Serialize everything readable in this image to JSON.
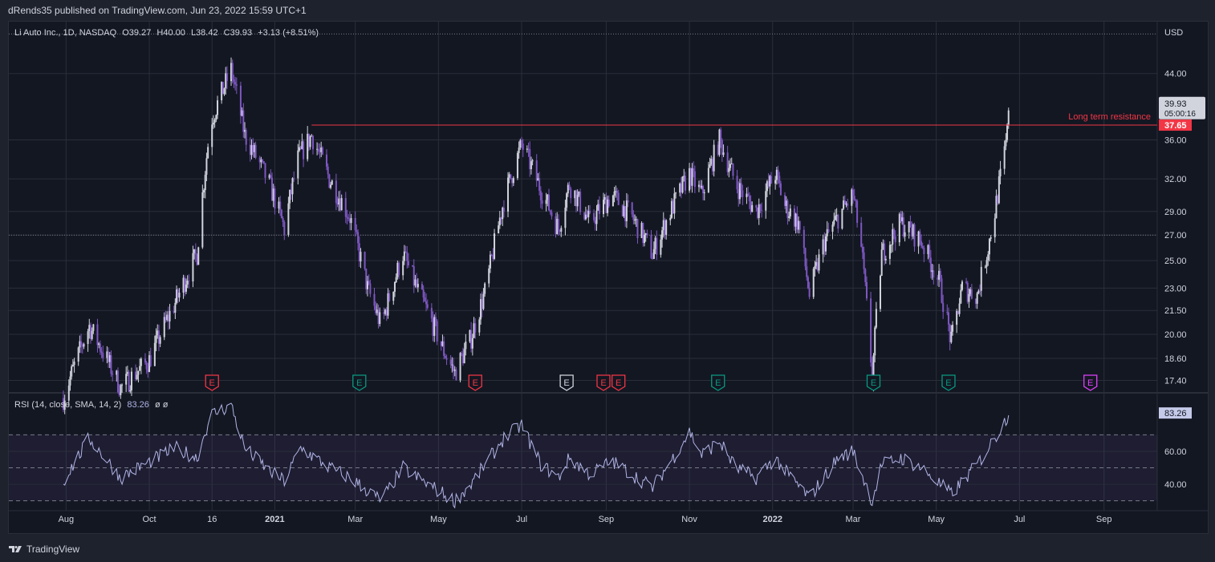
{
  "header": {
    "published": "dRends35 published on TradingView.com, Jun 23, 2022 15:59 UTC+1"
  },
  "footer": {
    "brand": "TradingView"
  },
  "symbol_legend": {
    "name": "Li Auto Inc., 1D, NASDAQ",
    "open": "O39.27",
    "high": "H40.00",
    "low": "L38.42",
    "close": "C39.93",
    "change": "+3.13 (+8.51%)"
  },
  "rsi_legend": {
    "text": "RSI (14, close, SMA, 14, 2)",
    "value": "83.26",
    "extra": "ø  ø"
  },
  "colors": {
    "background": "#131722",
    "grid": "#2a2e39",
    "up": "#d1d4dc",
    "down": "#7e57c2",
    "resistance": "#f23645",
    "rsi_line": "#b2b5e6",
    "earnings_red": "#f23645",
    "earnings_green": "#089981",
    "earnings_grey": "#d1d4dc",
    "earnings_magenta": "#e040fb"
  },
  "chart_data": [
    {
      "type": "candlestick",
      "title": "Li Auto Inc., 1D, NASDAQ",
      "currency": "USD",
      "scale": "log",
      "ylim": [
        16.8,
        50
      ],
      "y_ticks": [
        44.0,
        36.0,
        32.0,
        29.0,
        27.0,
        25.0,
        23.0,
        21.5,
        20.0,
        18.6,
        17.4
      ],
      "x_ticks": [
        "Aug",
        "Oct",
        "16",
        "2021",
        "Mar",
        "May",
        "Jul",
        "Sep",
        "Nov",
        "2022",
        "Mar",
        "May",
        "Jul",
        "Sep"
      ],
      "anchors": [
        {
          "date": "2020-07-30",
          "close": 16.5
        },
        {
          "date": "2020-08-18",
          "close": 20.5
        },
        {
          "date": "2020-09-10",
          "close": 17.0
        },
        {
          "date": "2020-10-01",
          "close": 18.5
        },
        {
          "date": "2020-10-20",
          "close": 22.0
        },
        {
          "date": "2020-11-05",
          "close": 25.5
        },
        {
          "date": "2020-11-15",
          "close": 38.0
        },
        {
          "date": "2020-11-30",
          "close": 44.5
        },
        {
          "date": "2020-12-10",
          "close": 36.5
        },
        {
          "date": "2020-12-28",
          "close": 31.5
        },
        {
          "date": "2021-01-08",
          "close": 27.5
        },
        {
          "date": "2021-01-18",
          "close": 34.0
        },
        {
          "date": "2021-01-28",
          "close": 36.5
        },
        {
          "date": "2021-02-10",
          "close": 32.0
        },
        {
          "date": "2021-02-25",
          "close": 28.5
        },
        {
          "date": "2021-03-10",
          "close": 23.0
        },
        {
          "date": "2021-03-20",
          "close": 20.5
        },
        {
          "date": "2021-04-05",
          "close": 25.5
        },
        {
          "date": "2021-04-15",
          "close": 23.0
        },
        {
          "date": "2021-05-05",
          "close": 19.0
        },
        {
          "date": "2021-05-13",
          "close": 17.8
        },
        {
          "date": "2021-05-25",
          "close": 19.8
        },
        {
          "date": "2021-06-05",
          "close": 23.0
        },
        {
          "date": "2021-06-18",
          "close": 30.0
        },
        {
          "date": "2021-07-01",
          "close": 35.5
        },
        {
          "date": "2021-07-15",
          "close": 31.0
        },
        {
          "date": "2021-07-28",
          "close": 27.5
        },
        {
          "date": "2021-08-05",
          "close": 31.5
        },
        {
          "date": "2021-08-20",
          "close": 28.0
        },
        {
          "date": "2021-09-05",
          "close": 30.5
        },
        {
          "date": "2021-09-20",
          "close": 28.5
        },
        {
          "date": "2021-10-05",
          "close": 25.5
        },
        {
          "date": "2021-10-20",
          "close": 29.5
        },
        {
          "date": "2021-11-01",
          "close": 32.5
        },
        {
          "date": "2021-11-10",
          "close": 30.5
        },
        {
          "date": "2021-11-23",
          "close": 36.0
        },
        {
          "date": "2021-12-05",
          "close": 31.5
        },
        {
          "date": "2021-12-20",
          "close": 29.0
        },
        {
          "date": "2022-01-03",
          "close": 32.5
        },
        {
          "date": "2022-01-10",
          "close": 29.5
        },
        {
          "date": "2022-01-20",
          "close": 28.0
        },
        {
          "date": "2022-01-28",
          "close": 22.5
        },
        {
          "date": "2022-02-08",
          "close": 26.5
        },
        {
          "date": "2022-02-18",
          "close": 28.5
        },
        {
          "date": "2022-03-01",
          "close": 30.5
        },
        {
          "date": "2022-03-07",
          "close": 26.0
        },
        {
          "date": "2022-03-15",
          "close": 17.5
        },
        {
          "date": "2022-03-22",
          "close": 25.5
        },
        {
          "date": "2022-04-05",
          "close": 28.0
        },
        {
          "date": "2022-04-20",
          "close": 26.5
        },
        {
          "date": "2022-05-03",
          "close": 23.5
        },
        {
          "date": "2022-05-12",
          "close": 19.5
        },
        {
          "date": "2022-05-20",
          "close": 23.0
        },
        {
          "date": "2022-05-31",
          "close": 22.5
        },
        {
          "date": "2022-06-08",
          "close": 26.0
        },
        {
          "date": "2022-06-13",
          "close": 29.0
        },
        {
          "date": "2022-06-20",
          "close": 34.5
        },
        {
          "date": "2022-06-22",
          "close": 36.8
        },
        {
          "date": "2022-06-23",
          "close": 39.93
        }
      ],
      "price_label": "39.93",
      "countdown_label": "05:00:16",
      "resistance": {
        "name": "Long term resistance",
        "value": 37.65,
        "label": "37.65",
        "start_date": "2021-01-28"
      },
      "dotted_levels": [
        27.0,
        49.6
      ],
      "earnings": [
        {
          "date": "2020-11-16",
          "kind": "red",
          "label": "E"
        },
        {
          "date": "2021-03-04",
          "kind": "green",
          "label": "E"
        },
        {
          "date": "2021-05-28",
          "kind": "red",
          "label": "E"
        },
        {
          "date": "2021-08-03",
          "kind": "grey",
          "label": "E"
        },
        {
          "date": "2021-08-30",
          "kind": "red",
          "label": "E"
        },
        {
          "date": "2021-09-10",
          "kind": "red",
          "label": "E"
        },
        {
          "date": "2021-11-22",
          "kind": "green",
          "label": "E"
        },
        {
          "date": "2022-03-16",
          "kind": "green",
          "label": "E"
        },
        {
          "date": "2022-05-10",
          "kind": "green",
          "label": "E"
        },
        {
          "date": "2022-08-22",
          "kind": "magenta",
          "label": "E"
        }
      ]
    },
    {
      "type": "line",
      "title": "RSI (14, close, SMA, 14, 2)",
      "ylim": [
        24,
        95
      ],
      "y_ticks": [
        60.0,
        40.0
      ],
      "bands": [
        70,
        50,
        30
      ],
      "current_label": "83.26",
      "anchors": [
        {
          "date": "2020-07-30",
          "value": 42
        },
        {
          "date": "2020-08-18",
          "value": 68
        },
        {
          "date": "2020-09-10",
          "value": 44
        },
        {
          "date": "2020-10-20",
          "value": 62
        },
        {
          "date": "2020-11-05",
          "value": 56
        },
        {
          "date": "2020-11-15",
          "value": 82
        },
        {
          "date": "2020-11-30",
          "value": 88
        },
        {
          "date": "2020-12-10",
          "value": 62
        },
        {
          "date": "2020-12-28",
          "value": 48
        },
        {
          "date": "2021-01-08",
          "value": 42
        },
        {
          "date": "2021-01-20",
          "value": 62
        },
        {
          "date": "2021-02-10",
          "value": 50
        },
        {
          "date": "2021-02-25",
          "value": 44
        },
        {
          "date": "2021-03-20",
          "value": 30
        },
        {
          "date": "2021-04-05",
          "value": 50
        },
        {
          "date": "2021-04-15",
          "value": 44
        },
        {
          "date": "2021-05-13",
          "value": 30
        },
        {
          "date": "2021-05-25",
          "value": 40
        },
        {
          "date": "2021-06-18",
          "value": 68
        },
        {
          "date": "2021-07-01",
          "value": 76
        },
        {
          "date": "2021-07-15",
          "value": 52
        },
        {
          "date": "2021-07-28",
          "value": 44
        },
        {
          "date": "2021-08-05",
          "value": 56
        },
        {
          "date": "2021-08-20",
          "value": 46
        },
        {
          "date": "2021-09-05",
          "value": 54
        },
        {
          "date": "2021-10-05",
          "value": 38
        },
        {
          "date": "2021-10-20",
          "value": 56
        },
        {
          "date": "2021-11-01",
          "value": 72
        },
        {
          "date": "2021-11-10",
          "value": 58
        },
        {
          "date": "2021-11-23",
          "value": 66
        },
        {
          "date": "2021-12-05",
          "value": 50
        },
        {
          "date": "2021-12-20",
          "value": 44
        },
        {
          "date": "2022-01-03",
          "value": 56
        },
        {
          "date": "2022-01-10",
          "value": 48
        },
        {
          "date": "2022-01-28",
          "value": 32
        },
        {
          "date": "2022-02-18",
          "value": 56
        },
        {
          "date": "2022-03-01",
          "value": 60
        },
        {
          "date": "2022-03-15",
          "value": 30
        },
        {
          "date": "2022-03-22",
          "value": 52
        },
        {
          "date": "2022-04-05",
          "value": 56
        },
        {
          "date": "2022-04-20",
          "value": 50
        },
        {
          "date": "2022-05-12",
          "value": 34
        },
        {
          "date": "2022-05-31",
          "value": 52
        },
        {
          "date": "2022-06-13",
          "value": 68
        },
        {
          "date": "2022-06-20",
          "value": 78
        },
        {
          "date": "2022-06-23",
          "value": 83.26
        }
      ]
    }
  ]
}
